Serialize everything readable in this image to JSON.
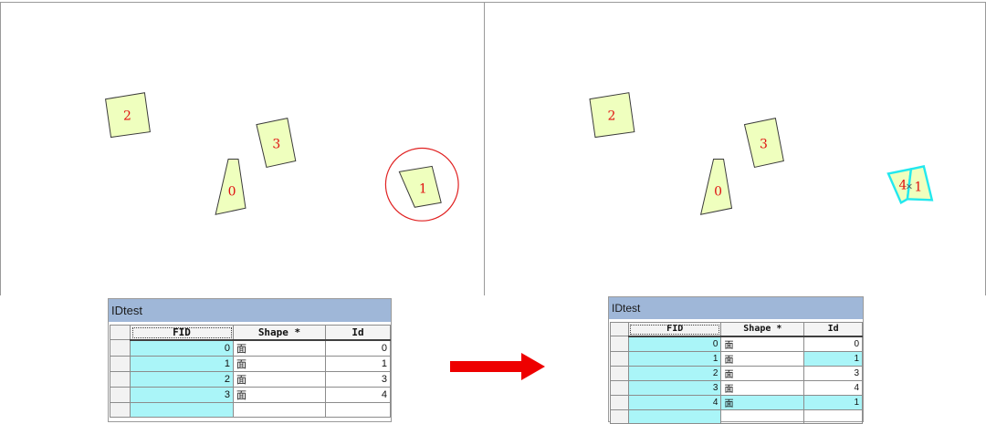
{
  "colors": {
    "polygon_fill": "#efffbe",
    "label_red": "#e01010",
    "selection_cyan": "#22e8ee",
    "table_title_bar": "#9fb7d8",
    "fid_cell": "#aaf5f8",
    "arrow_red": "#ee0000"
  },
  "map_before": {
    "labels": [
      "2",
      "3",
      "0",
      "1"
    ]
  },
  "map_after": {
    "labels": [
      "2",
      "3",
      "0",
      "4",
      "1"
    ],
    "vertex_marker": "×"
  },
  "table_before": {
    "title": "IDtest",
    "columns": [
      "FID",
      "Shape *",
      "Id"
    ],
    "rows": [
      {
        "fid": "0",
        "shape": "面",
        "id": "0"
      },
      {
        "fid": "1",
        "shape": "面",
        "id": "1"
      },
      {
        "fid": "2",
        "shape": "面",
        "id": "3"
      },
      {
        "fid": "3",
        "shape": "面",
        "id": "4"
      }
    ]
  },
  "table_after": {
    "title": "IDtest",
    "columns": [
      "FID",
      "Shape *",
      "Id"
    ],
    "rows": [
      {
        "fid": "0",
        "shape": "面",
        "id": "0"
      },
      {
        "fid": "1",
        "shape": "面",
        "id": "1"
      },
      {
        "fid": "2",
        "shape": "面",
        "id": "3"
      },
      {
        "fid": "3",
        "shape": "面",
        "id": "4"
      },
      {
        "fid": "4",
        "shape": "面",
        "id": "1"
      }
    ]
  },
  "arrow_icon": "right-arrow-icon"
}
